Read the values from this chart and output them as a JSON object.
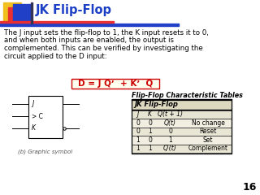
{
  "title": "JK Flip-Flop",
  "title_color": "#1a3fc4",
  "body_text_lines": [
    "The J input sets the flip-flop to 1, the K input resets it to 0,",
    "and when both inputs are enabled, the output is",
    "complemented. This can be verified by investigating the",
    "circuit applied to the D input:"
  ],
  "formula_text": "D = J Qʼ  + Kʼ Q",
  "formula_color": "#cc0000",
  "formula_box_facecolor": "#fffff0",
  "formula_box_edgecolor": "#cc0000",
  "bg_color": "#ffffff",
  "slide_number": "16",
  "table_title": "Flip-Flop Characteristic Tables",
  "table_subtitle": "JK Flip-Flop",
  "table_col_headers": [
    "J",
    "K",
    "Q(t + 1)",
    ""
  ],
  "table_rows": [
    [
      "0",
      "0",
      "Q(t)",
      "No change"
    ],
    [
      "0",
      "1",
      "0",
      "Reset"
    ],
    [
      "1",
      "0",
      "1",
      "Set"
    ],
    [
      "1",
      "1",
      "Q′(t)",
      "Complement"
    ]
  ],
  "circuit_labels": [
    "J",
    "> C",
    "K"
  ],
  "circuit_caption": "(b) Graphic symbol",
  "yellow_color": "#f0c020",
  "red_color": "#e83030",
  "blue_color": "#2040c8",
  "body_fontsize": 6.2,
  "title_fontsize": 10.5
}
